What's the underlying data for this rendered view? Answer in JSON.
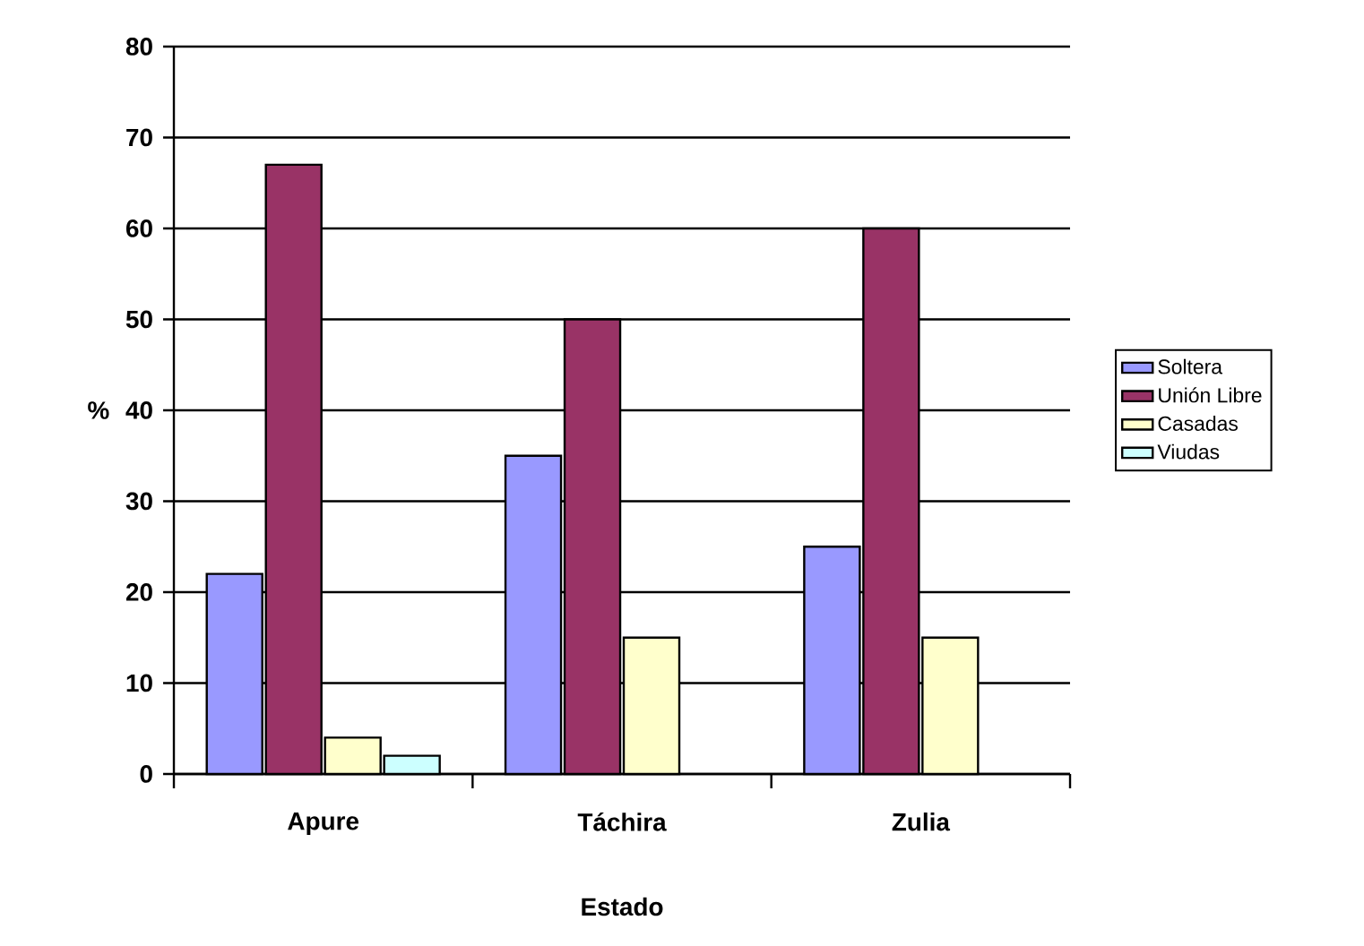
{
  "chart_data": {
    "type": "bar",
    "xlabel": "Estado",
    "ylabel": "%",
    "categories": [
      "Apure",
      "Táchira",
      "Zulia"
    ],
    "series": [
      {
        "name": "Soltera",
        "color": "#9999ff",
        "values": [
          22,
          35,
          25
        ]
      },
      {
        "name": "Unión Libre",
        "color": "#993366",
        "values": [
          67,
          50,
          60
        ]
      },
      {
        "name": "Casadas",
        "color": "#ffffcc",
        "values": [
          4,
          15,
          15
        ]
      },
      {
        "name": "Viudas",
        "color": "#ccffff",
        "values": [
          2,
          null,
          null
        ]
      }
    ],
    "ylim": [
      0,
      80
    ],
    "yticks": [
      0,
      10,
      20,
      30,
      40,
      50,
      60,
      70,
      80
    ],
    "grid": "y",
    "legend": "right"
  }
}
